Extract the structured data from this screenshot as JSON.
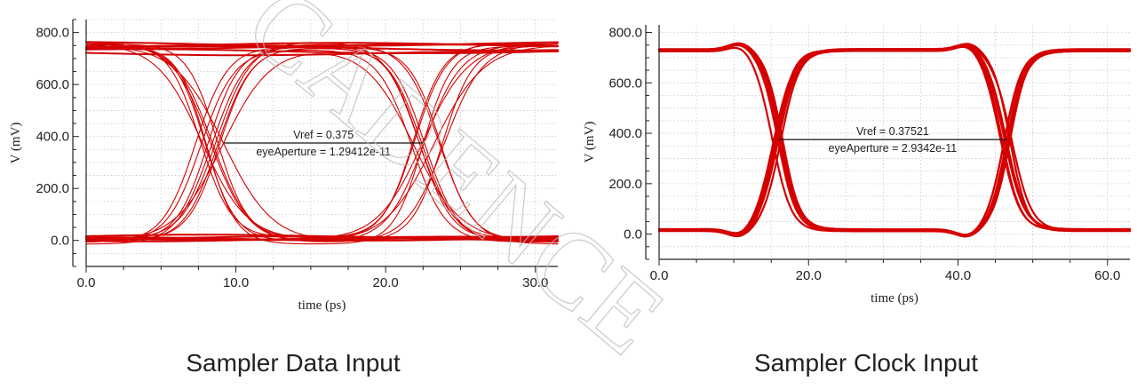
{
  "watermark": "CADENCE",
  "charts": [
    {
      "caption": "Sampler Data Input",
      "chart_data": {
        "type": "line",
        "subtype": "eye-diagram",
        "xlabel": "time (ps)",
        "ylabel": "V (mV)",
        "xlim": [
          0,
          31.5
        ],
        "ylim": [
          -100,
          850
        ],
        "xticks": [
          0,
          10,
          20,
          30
        ],
        "xtick_labels": [
          "0.0",
          "10.0",
          "20.0",
          "30.0"
        ],
        "yticks": [
          0,
          200,
          400,
          600,
          800
        ],
        "ytick_labels": [
          "0.0",
          "200.0",
          "400.0",
          "600.0",
          "800.0"
        ],
        "grid": true,
        "line_color": "#d40000",
        "high_level": 750,
        "low_level": 0,
        "crossings_ps": [
          8.3,
          22.7
        ],
        "crossing_spread_ps": 2.6,
        "traces": 16,
        "vref_mV": 375,
        "vref_line_x": [
          9.2,
          22.5
        ],
        "annotations": [
          "Vref = 0.375",
          "eyeAperture = 1.29412e-11"
        ]
      }
    },
    {
      "caption": "Sampler Clock Input",
      "chart_data": {
        "type": "line",
        "subtype": "eye-diagram",
        "xlabel": "time (ps)",
        "ylabel": "V (mV)",
        "xlim": [
          0,
          63
        ],
        "ylim": [
          -100,
          830
        ],
        "xticks": [
          0,
          20,
          40,
          60
        ],
        "xtick_labels": [
          "0.0",
          "20.0",
          "40.0",
          "60.0"
        ],
        "yticks": [
          0,
          200,
          400,
          600,
          800
        ],
        "ytick_labels": [
          "0.0",
          "200.0",
          "400.0",
          "600.0",
          "800.0"
        ],
        "grid": true,
        "line_color": "#d40000",
        "high_level": 730,
        "low_level": 15,
        "crossings_ps": [
          16,
          46.5
        ],
        "crossing_spread_ps": 1.6,
        "traces": 14,
        "vref_mV": 375.21,
        "vref_line_x": [
          16,
          46.5
        ],
        "annotations": [
          "Vref = 0.37521",
          "eyeAperture = 2.9342e-11"
        ]
      }
    }
  ]
}
